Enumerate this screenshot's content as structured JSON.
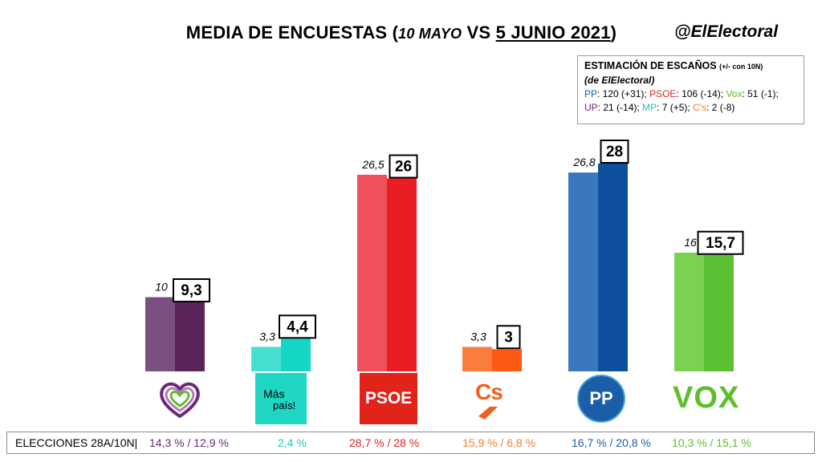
{
  "title": {
    "part1": "MEDIA DE ENCUESTAS (",
    "part2": "10 MAYO",
    "part3": " VS ",
    "part4": "5 JUNIO 2021",
    "part5": ")"
  },
  "brand": "@ElElectoral",
  "seat_estimate": {
    "heading": "ESTIMACIÓN DE ESCAÑOS",
    "heading_note": "(+/- con 10N)",
    "source": "(de ElElectoral)",
    "items": [
      {
        "party": "PP",
        "text": ": 120 (+31); ",
        "color": "#1a5ea8"
      },
      {
        "party": "PSOE",
        "text": ": 106 (-14); ",
        "color": "#e2231a"
      },
      {
        "party": "Vox",
        "text": ": 51 (-1);",
        "color": "#5cbf2a"
      },
      {
        "party": "UP",
        "text": ": 21 (-14); ",
        "color": "#6a2a7a"
      },
      {
        "party": "MP",
        "text": ": 7 (+5); ",
        "color": "#1fc8b7"
      },
      {
        "party": "C's",
        "text": ": 2 (-8)",
        "color": "#f08030"
      }
    ]
  },
  "chart_data": {
    "type": "bar",
    "categories": [
      "UP",
      "Más País",
      "PSOE",
      "Cs",
      "PP",
      "VOX"
    ],
    "series": [
      {
        "name": "10 MAYO",
        "values": [
          10,
          3.3,
          26.5,
          3.3,
          26.8,
          16
        ],
        "labels": [
          "10",
          "3,3",
          "26,5",
          "3,3",
          "26,8",
          "16"
        ]
      },
      {
        "name": "5 JUNIO 2021",
        "values": [
          9.3,
          4.4,
          26,
          3,
          28,
          15.7
        ],
        "labels": [
          "9,3",
          "4,4",
          "26",
          "3",
          "28",
          "15,7"
        ]
      }
    ],
    "colors_old": [
      "#7b4f82",
      "#45e0cf",
      "#f0505a",
      "#fa7d3c",
      "#3a78bd",
      "#7cd155"
    ],
    "colors_new": [
      "#5a2458",
      "#15d6c4",
      "#ea1c24",
      "#fc5a14",
      "#0e4f9e",
      "#5bc134"
    ],
    "ylim": [
      0,
      30
    ],
    "grid": false,
    "legend": "none"
  },
  "logos": {
    "mas_pais_line1": "Más",
    "mas_pais_line2": "país!",
    "psoe": "PSOE",
    "cs": "Cs",
    "pp": "PP",
    "vox": "VOX"
  },
  "footer": {
    "label": "ELECCIONES 28A/10N|",
    "results": [
      {
        "text": "14,3 % / 12,9 %",
        "color": "#6a2a7a"
      },
      {
        "text": "2,4 %",
        "color": "#1fc8b7"
      },
      {
        "text": "28,7  % / 28 %",
        "color": "#e2231a"
      },
      {
        "text": "15,9 % / 6,8 %",
        "color": "#f08030"
      },
      {
        "text": "16,7 % / 20,8 %",
        "color": "#1a5ea8"
      },
      {
        "text": "10,3 % / 15,1 %",
        "color": "#5cbf2a"
      }
    ]
  }
}
